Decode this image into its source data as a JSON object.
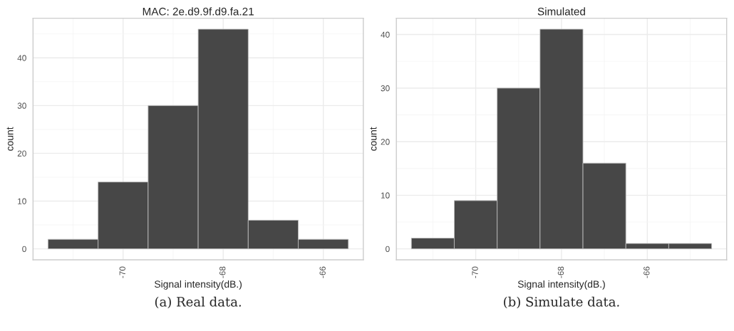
{
  "chart_data": [
    {
      "type": "histogram",
      "title": "MAC: 2e.d9.9f.d9.fa.21",
      "xlabel": "Signal intensity(dB.)",
      "ylabel": "count",
      "bins": [
        -71.5,
        -70.5,
        -69.5,
        -68.5,
        -67.5,
        -66.5,
        -65.5
      ],
      "values": [
        2,
        14,
        30,
        46,
        6,
        2
      ],
      "color": "#474747",
      "xlim": [
        -71.8,
        -65.2
      ],
      "ylim": [
        -2.3,
        48.3
      ],
      "xticks": [
        -70,
        -68,
        -66
      ],
      "yticks": [
        0,
        10,
        20,
        30,
        40
      ],
      "grid": true,
      "annotations": [
        "(a) Real data."
      ]
    },
    {
      "type": "histogram",
      "title": "Simulated",
      "xlabel": "Signal intensity(dB.)",
      "ylabel": "count",
      "bins": [
        -71.5,
        -70.5,
        -69.5,
        -68.5,
        -67.5,
        -66.5,
        -65.5,
        -64.5
      ],
      "values": [
        2,
        9,
        30,
        41,
        16,
        1,
        1
      ],
      "color": "#474747",
      "xlim": [
        -71.85,
        -64.15
      ],
      "ylim": [
        -2.05,
        43.05
      ],
      "xticks": [
        -70,
        -68,
        -66
      ],
      "yticks": [
        0,
        10,
        20,
        30,
        40
      ],
      "grid": true,
      "annotations": [
        "(b) Simulate data."
      ]
    }
  ]
}
